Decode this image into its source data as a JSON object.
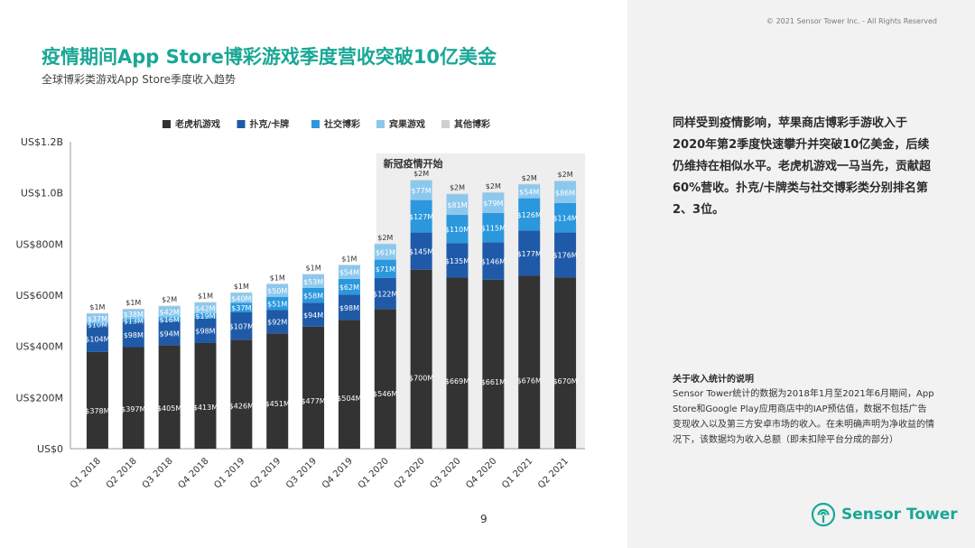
{
  "header": {
    "copyright": "© 2021 Sensor Tower Inc. - All Rights Reserved",
    "title": "疫情期间App Store博彩游戏季度营收突破10亿美金",
    "subtitle": "全球博彩类游戏App Store季度收入趋势"
  },
  "insight": "同样受到疫情影响，苹果商店博彩手游收入于2020年第2季度快速攀升并突破10亿美金，后续仍维持在相似水平。老虎机游戏一马当先，贡献超60%营收。扑克/卡牌类与社交博彩类分别排名第2、3位。",
  "note": {
    "title": "关于收入统计的说明",
    "body": "Sensor Tower统计的数据为2018年1月至2021年6月期间，App Store和Google Play应用商店中的IAP预估值，数据不包括广告变现收入以及第三方安卓市场的收入。在未明确声明为净收益的情况下，该数据均为收入总额（即未扣除平台分成的部分）"
  },
  "page_number": "9",
  "logo": {
    "text": "Sensor Tower",
    "icon": "sensor-tower-logo-icon"
  },
  "colors": {
    "accent": "#1aa796",
    "highlight_band": "#eeeeee"
  },
  "chart_data": {
    "type": "bar",
    "stacked": true,
    "categories": [
      "Q1 2018",
      "Q2 2018",
      "Q3 2018",
      "Q4 2018",
      "Q1 2019",
      "Q2 2019",
      "Q3 2019",
      "Q4 2019",
      "Q1 2020",
      "Q2 2020",
      "Q3 2020",
      "Q4 2020",
      "Q1 2021",
      "Q2 2021"
    ],
    "y_ticks": [
      "US$0",
      "US$200M",
      "US$400M",
      "US$600M",
      "US$800M",
      "US$1.0B",
      "US$1.2B"
    ],
    "ylim": [
      0,
      1200
    ],
    "unit": "M",
    "legend_position": "top",
    "series": [
      {
        "name": "老虎机游戏",
        "color": "#333333",
        "label_color": "#ffffff",
        "values": [
          378,
          397,
          405,
          413,
          426,
          451,
          477,
          504,
          546,
          700,
          669,
          661,
          676,
          670
        ],
        "labels": [
          "$378M",
          "$397M",
          "$405M",
          "$413M",
          "$426M",
          "$451M",
          "$477M",
          "$504M",
          "$546M",
          "$700M",
          "$669M",
          "$661M",
          "$676M",
          "$670M"
        ]
      },
      {
        "name": "扑克/卡牌",
        "color": "#1f5aa8",
        "label_color": "#ffffff",
        "values": [
          104,
          98,
          94,
          98,
          107,
          92,
          94,
          98,
          122,
          145,
          135,
          146,
          177,
          176
        ],
        "labels": [
          "$104M",
          "$98M",
          "$94M",
          "$98M",
          "$107M",
          "$92M",
          "$94M",
          "$98M",
          "$122M",
          "$145M",
          "$135M",
          "$146M",
          "$177M",
          "$176M"
        ]
      },
      {
        "name": "社交博彩",
        "color": "#2b97dd",
        "label_color": "#ffffff",
        "values": [
          10,
          13,
          16,
          19,
          37,
          51,
          58,
          62,
          71,
          127,
          110,
          115,
          126,
          114
        ],
        "labels": [
          "$10M",
          "$13M",
          "$16M",
          "$19M",
          "$37M",
          "$51M",
          "$58M",
          "$62M",
          "$71M",
          "$127M",
          "$110M",
          "$115M",
          "$126M",
          "$114M"
        ]
      },
      {
        "name": "宾果游戏",
        "color": "#8cc8ee",
        "label_color": "#ffffff",
        "values": [
          37,
          38,
          42,
          42,
          40,
          50,
          53,
          54,
          61,
          77,
          81,
          79,
          54,
          86
        ],
        "labels": [
          "$37M",
          "$38M",
          "$42M",
          "$42M",
          "$40M",
          "$50M",
          "$53M",
          "$54M",
          "$61M",
          "$77M",
          "$81M",
          "$79M",
          "$54M",
          "$86M"
        ]
      },
      {
        "name": "其他博彩",
        "color": "#cfcfcf",
        "label_color": "#333333",
        "values": [
          1,
          1,
          2,
          1,
          1,
          1,
          1,
          1,
          2,
          2,
          2,
          2,
          2,
          2
        ],
        "labels": [
          "$1M",
          "$1M",
          "$2M",
          "$1M",
          "$1M",
          "$1M",
          "$1M",
          "$1M",
          "$2M",
          "$2M",
          "$2M",
          "$2M",
          "$2M",
          "$2M"
        ]
      }
    ],
    "annotation": {
      "text": "新冠疫情开始",
      "start_index": 9
    }
  }
}
